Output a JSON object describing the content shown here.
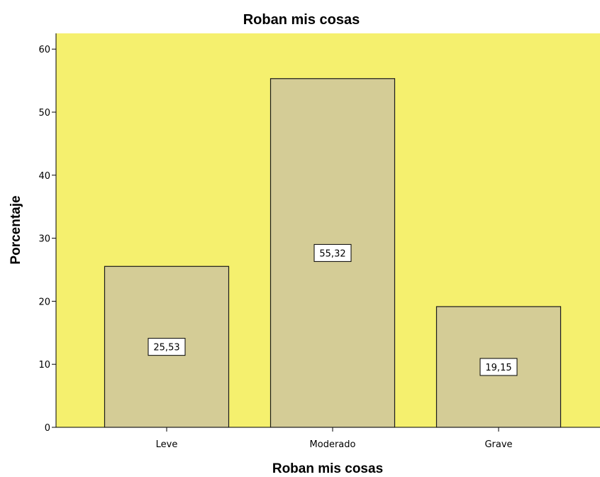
{
  "colors": {
    "plot_background": "#f5f06e",
    "bar_fill": "#d4cc96",
    "bar_stroke": "#1a1a1a",
    "label_box_fill": "#ffffff"
  },
  "chart_data": {
    "type": "bar",
    "title": "Roban mis cosas",
    "xlabel": "Roban mis cosas",
    "ylabel": "Porcentaje",
    "categories": [
      "Leve",
      "Moderado",
      "Grave"
    ],
    "values": [
      25.53,
      55.32,
      19.15
    ],
    "data_labels": [
      "25,53",
      "55,32",
      "19,15"
    ],
    "ylim": [
      0,
      62.5
    ],
    "yticks": [
      0,
      10,
      20,
      30,
      40,
      50,
      60
    ],
    "grid": false,
    "legend": "none"
  }
}
